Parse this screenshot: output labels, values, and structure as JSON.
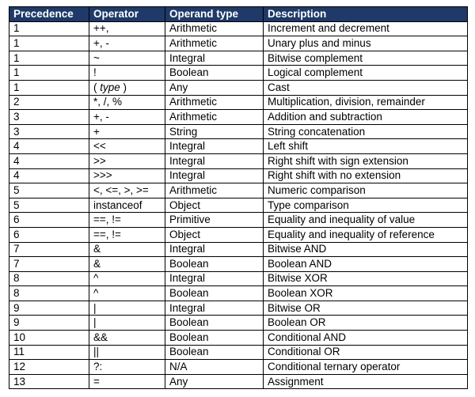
{
  "table": {
    "header": [
      "Precedence",
      "Operator",
      "Operand type",
      "Description"
    ],
    "rows": [
      [
        "1",
        "++,",
        "Arithmetic",
        "Increment and decrement"
      ],
      [
        "1",
        "+, -",
        "Arithmetic",
        "Unary plus and minus"
      ],
      [
        "1",
        "~",
        "Integral",
        "Bitwise complement"
      ],
      [
        "1",
        "!",
        "Boolean",
        "Logical complement"
      ],
      [
        "1",
        [
          "( ",
          "type",
          " )"
        ],
        "Any",
        "Cast"
      ],
      [
        "2",
        "*, /, %",
        "Arithmetic",
        "Multiplication, division, remainder"
      ],
      [
        "3",
        "+, -",
        "Arithmetic",
        "Addition and subtraction"
      ],
      [
        "3",
        "+",
        "String",
        "String concatenation"
      ],
      [
        "4",
        "<<",
        "Integral",
        "Left shift"
      ],
      [
        "4",
        ">>",
        "Integral",
        "Right shift with sign extension"
      ],
      [
        "4",
        ">>>",
        "Integral",
        "Right shift with no extension"
      ],
      [
        "5",
        "<, <=, >, >=",
        "Arithmetic",
        "Numeric comparison"
      ],
      [
        "5",
        "instanceof",
        "Object",
        "Type comparison"
      ],
      [
        "6",
        "==, !=",
        "Primitive",
        "Equality and inequality of value"
      ],
      [
        "6",
        "==, !=",
        "Object",
        "Equality and inequality of reference"
      ],
      [
        "7",
        "&",
        "Integral",
        "Bitwise AND"
      ],
      [
        "7",
        "&",
        "Boolean",
        "Boolean AND"
      ],
      [
        "8",
        "^",
        "Integral",
        "Bitwise XOR"
      ],
      [
        "8",
        "^",
        "Boolean",
        "Boolean XOR"
      ],
      [
        "9",
        "|",
        "Integral",
        "Bitwise OR"
      ],
      [
        "9",
        "|",
        "Boolean",
        "Boolean OR"
      ],
      [
        "10",
        "&&",
        "Boolean",
        "Conditional AND"
      ],
      [
        "11",
        "||",
        "Boolean",
        "Conditional OR"
      ],
      [
        "12",
        "?:",
        "N/A",
        "Conditional ternary operator"
      ],
      [
        "13",
        "=",
        "Any",
        "Assignment"
      ]
    ]
  }
}
